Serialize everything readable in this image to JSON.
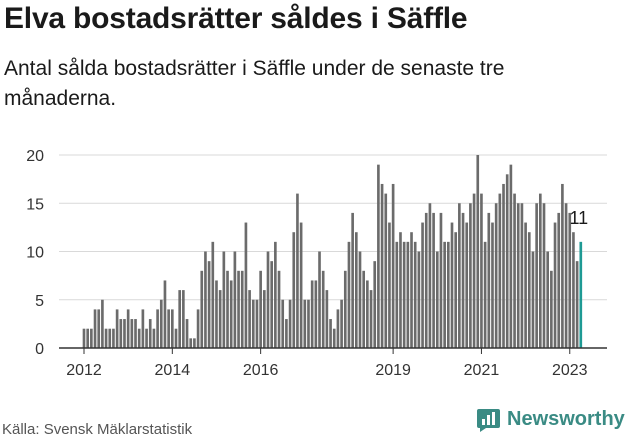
{
  "title": "Elva bostadsrätter såldes i Säffle",
  "subtitle": "Antal sålda bostadsrätter i Säffle under de senaste tre månaderna.",
  "source": "Källa: Svensk Mäklarstatistik",
  "brand": {
    "name": "Newsworthy",
    "icon": "newsworthy-logo-icon",
    "color": "#3a8b84"
  },
  "colors": {
    "bar": "#6b6b6b",
    "highlight": "#1e9a94",
    "grid": "#d9d9d9",
    "axis": "#333333"
  },
  "chart_data": {
    "type": "bar",
    "title": "Elva bostadsrätter såldes i Säffle",
    "xlabel": "",
    "ylabel": "",
    "ylim": [
      0,
      20
    ],
    "yticks": [
      0,
      5,
      10,
      15,
      20
    ],
    "xticks": [
      {
        "label": "2012",
        "index": 0
      },
      {
        "label": "2014",
        "index": 24
      },
      {
        "label": "2016",
        "index": 48
      },
      {
        "label": "2019",
        "index": 84
      },
      {
        "label": "2021",
        "index": 108
      },
      {
        "label": "2023",
        "index": 132
      }
    ],
    "frequency": "monthly",
    "start": "2012-01",
    "values": [
      2,
      2,
      2,
      4,
      4,
      5,
      2,
      2,
      2,
      4,
      3,
      3,
      4,
      3,
      3,
      2,
      4,
      2,
      3,
      2,
      4,
      5,
      7,
      4,
      4,
      2,
      6,
      6,
      3,
      1,
      1,
      4,
      8,
      10,
      9,
      11,
      7,
      6,
      10,
      8,
      7,
      10,
      8,
      8,
      13,
      6,
      5,
      5,
      8,
      6,
      10,
      9,
      11,
      8,
      5,
      3,
      5,
      12,
      16,
      13,
      5,
      5,
      7,
      7,
      10,
      8,
      6,
      3,
      2,
      4,
      5,
      8,
      11,
      14,
      12,
      10,
      8,
      7,
      6,
      9,
      19,
      17,
      16,
      13,
      17,
      11,
      12,
      11,
      11,
      12,
      11,
      10,
      13,
      14,
      15,
      14,
      10,
      14,
      11,
      11,
      13,
      12,
      15,
      14,
      13,
      15,
      16,
      20,
      16,
      11,
      14,
      13,
      15,
      16,
      17,
      18,
      19,
      16,
      15,
      15,
      13,
      12,
      10,
      15,
      16,
      15,
      10,
      8,
      13,
      14,
      17,
      15,
      14,
      12,
      9,
      11
    ],
    "highlight": {
      "index": 135,
      "value": 11,
      "label": "11"
    }
  }
}
